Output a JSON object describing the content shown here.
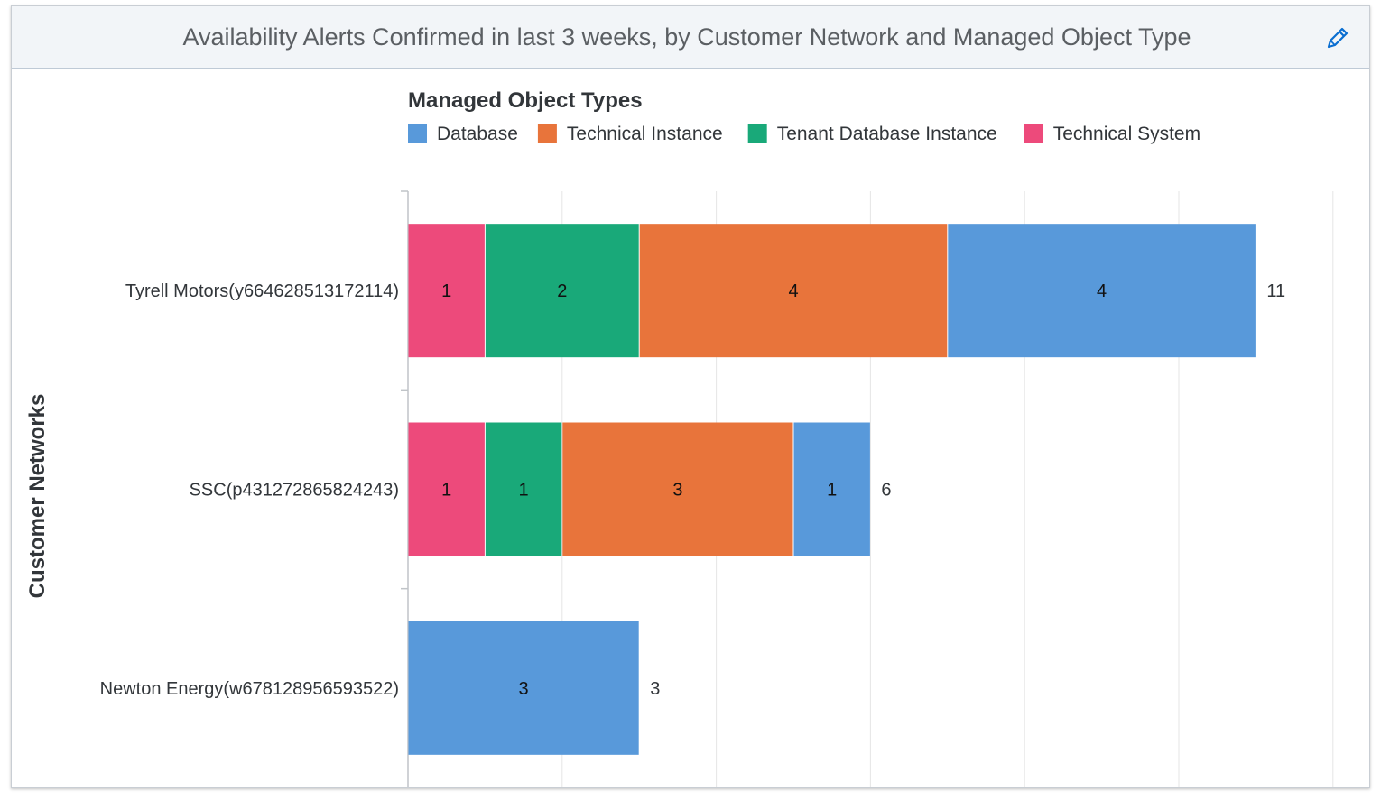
{
  "header": {
    "title": "Availability Alerts Confirmed in last 3 weeks, by Customer Network and Managed Object Type"
  },
  "icons": {
    "edit": "pencil-icon"
  },
  "chart_data": {
    "type": "bar",
    "orientation": "horizontal",
    "stacked": true,
    "ylabel": "Customer Networks",
    "legend_title": "Managed Object Types",
    "legend_position": "top",
    "categories": [
      "Tyrell Motors(y664628513172114)",
      "SSC(p431272865824243)",
      "Newton Energy(w678128956593522)"
    ],
    "legend_order": [
      "Database",
      "Technical Instance",
      "Tenant Database Instance",
      "Technical System"
    ],
    "stack_order": [
      "Technical System",
      "Tenant Database Instance",
      "Technical Instance",
      "Database"
    ],
    "series": [
      {
        "name": "Database",
        "color": "#5899da",
        "values": [
          4,
          1,
          3
        ]
      },
      {
        "name": "Technical Instance",
        "color": "#e8743b",
        "values": [
          4,
          3,
          0
        ]
      },
      {
        "name": "Tenant Database Instance",
        "color": "#19a979",
        "values": [
          2,
          1,
          0
        ]
      },
      {
        "name": "Technical System",
        "color": "#ed4a7b",
        "values": [
          1,
          1,
          0
        ]
      }
    ],
    "totals": [
      11,
      6,
      3
    ],
    "xlim": [
      0,
      12
    ],
    "grid": true
  }
}
